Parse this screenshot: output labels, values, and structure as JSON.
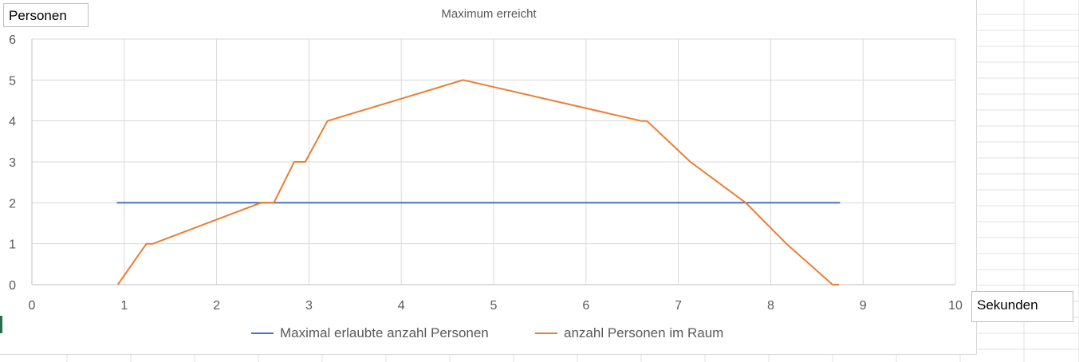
{
  "chart_data": {
    "type": "line",
    "title": "Maximum erreicht",
    "xlabel": "Sekunden",
    "ylabel": "Personen",
    "xlim": [
      0,
      10
    ],
    "ylim": [
      0,
      6
    ],
    "xticks": [
      "0",
      "1",
      "2",
      "3",
      "4",
      "5",
      "6",
      "7",
      "8",
      "9",
      "10"
    ],
    "yticks": [
      "0",
      "1",
      "2",
      "3",
      "4",
      "5",
      "6"
    ],
    "grid": true,
    "legend_position": "bottom",
    "series": [
      {
        "name": "Maximal erlaubte anzahl Personen",
        "color": "#4472c4",
        "points": [
          [
            0.92,
            2
          ],
          [
            8.75,
            2
          ]
        ]
      },
      {
        "name": "anzahl Personen im Raum",
        "color": "#ed7d31",
        "points": [
          [
            0.93,
            0
          ],
          [
            1.24,
            1
          ],
          [
            1.31,
            1
          ],
          [
            2.48,
            2
          ],
          [
            2.62,
            2
          ],
          [
            2.84,
            3
          ],
          [
            2.96,
            3
          ],
          [
            3.2,
            4
          ],
          [
            4.67,
            5
          ],
          [
            6.6,
            4
          ],
          [
            6.66,
            4
          ],
          [
            7.13,
            3
          ],
          [
            7.73,
            2
          ],
          [
            8.17,
            1
          ],
          [
            8.67,
            0
          ],
          [
            8.74,
            0
          ]
        ]
      }
    ]
  }
}
